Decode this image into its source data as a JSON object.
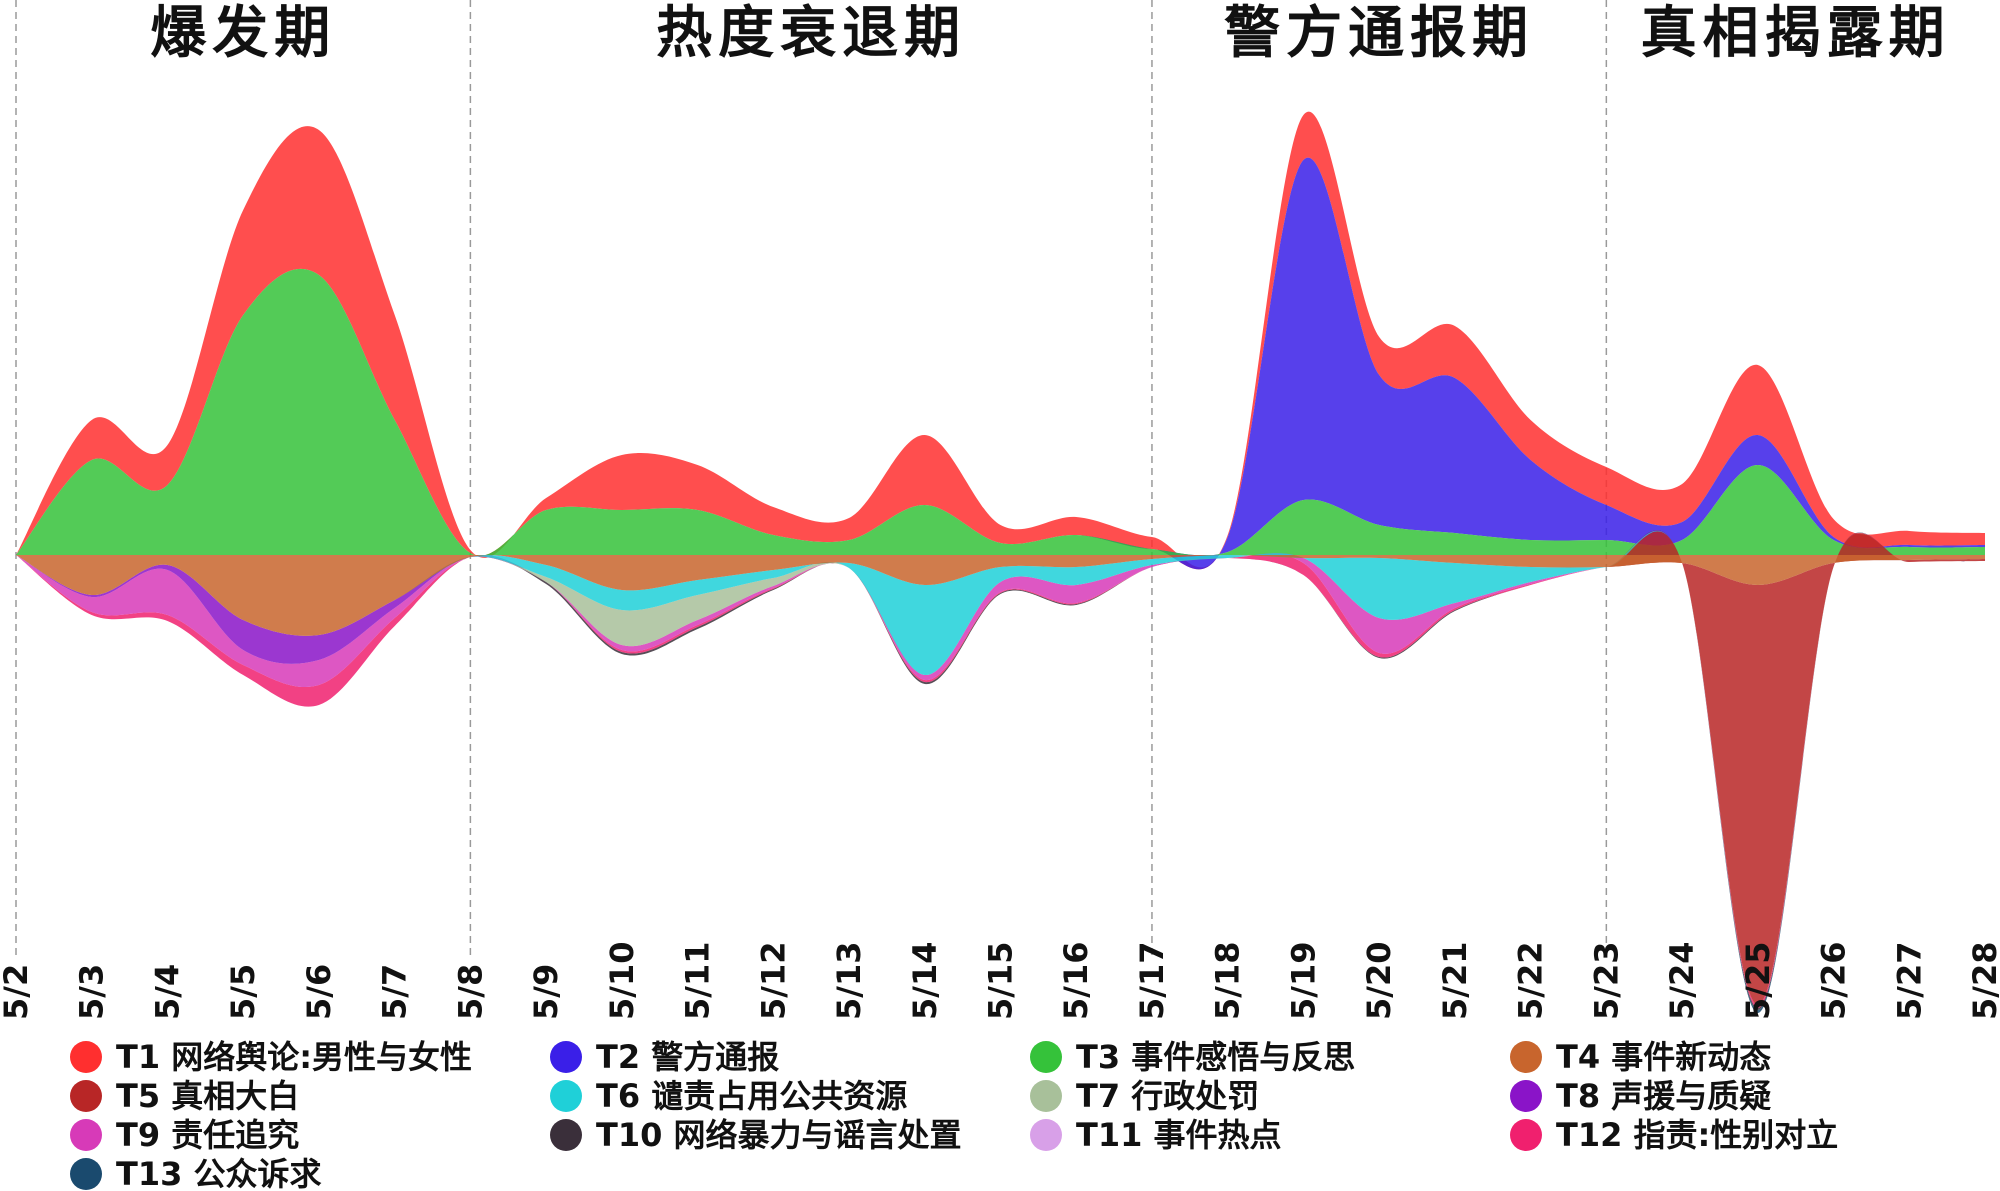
{
  "chart_data": {
    "type": "area",
    "subtype": "streamgraph",
    "x": [
      "5/2",
      "5/3",
      "5/4",
      "5/5",
      "5/6",
      "5/7",
      "5/8",
      "5/9",
      "5/10",
      "5/11",
      "5/12",
      "5/13",
      "5/14",
      "5/15",
      "5/16",
      "5/17",
      "5/18",
      "5/19",
      "5/20",
      "5/21",
      "5/22",
      "5/23",
      "5/24",
      "5/25",
      "5/26",
      "5/27",
      "5/28"
    ],
    "phases": [
      {
        "label": "爆发期",
        "from": "5/2",
        "to": "5/8"
      },
      {
        "label": "热度衰退期",
        "from": "5/8",
        "to": "5/17"
      },
      {
        "label": "警方通报期",
        "from": "5/17",
        "to": "5/23"
      },
      {
        "label": "真相揭露期",
        "from": "5/23",
        "to": "5/28"
      }
    ],
    "series": [
      {
        "name": "T1 网络舆论:男性与女性",
        "color": "#ff2f2f",
        "values": [
          0,
          40,
          40,
          105,
          145,
          105,
          3,
          12,
          55,
          45,
          28,
          22,
          70,
          18,
          18,
          12,
          2,
          45,
          38,
          52,
          40,
          38,
          38,
          70,
          18,
          14,
          12
        ]
      },
      {
        "name": "T2 警方通报",
        "color": "#3a1fe8",
        "values": [
          0,
          0,
          0,
          0,
          0,
          0,
          0,
          0,
          0,
          0,
          0,
          0,
          0,
          0,
          0,
          0,
          15,
          340,
          150,
          155,
          80,
          35,
          18,
          30,
          3,
          2,
          2
        ]
      },
      {
        "name": "T3 事件感悟与反思",
        "color": "#35c23a",
        "values": [
          0,
          95,
          70,
          240,
          280,
          135,
          2,
          45,
          45,
          45,
          20,
          15,
          50,
          12,
          20,
          6,
          3,
          55,
          30,
          22,
          15,
          15,
          15,
          90,
          15,
          8,
          8
        ]
      },
      {
        "name": "T4 事件新动态",
        "color": "#c8652d",
        "values": [
          0,
          40,
          10,
          65,
          80,
          45,
          2,
          10,
          35,
          25,
          15,
          8,
          30,
          12,
          12,
          4,
          0,
          3,
          3,
          8,
          12,
          12,
          8,
          30,
          8,
          5,
          4
        ]
      },
      {
        "name": "T5 真相大白",
        "color": "#b82626",
        "values": [
          0,
          0,
          0,
          0,
          0,
          0,
          0,
          0,
          0,
          0,
          0,
          0,
          0,
          0,
          0,
          0,
          0,
          0,
          0,
          0,
          0,
          0,
          0,
          420,
          4,
          2,
          2
        ]
      },
      {
        "name": "T6 谴责占用公共资源",
        "color": "#1fd0d8",
        "values": [
          0,
          0,
          0,
          0,
          0,
          0,
          0,
          12,
          20,
          15,
          8,
          5,
          90,
          15,
          18,
          6,
          3,
          0,
          60,
          40,
          15,
          0,
          0,
          0,
          0,
          0,
          0
        ]
      },
      {
        "name": "T7 行政处罚",
        "color": "#a8c09a",
        "values": [
          0,
          0,
          0,
          0,
          0,
          0,
          0,
          5,
          35,
          25,
          8,
          0,
          0,
          0,
          0,
          0,
          0,
          0,
          0,
          0,
          0,
          0,
          0,
          0,
          0,
          0,
          0
        ]
      },
      {
        "name": "T8 声援与质疑",
        "color": "#8a14c8",
        "values": [
          0,
          2,
          5,
          30,
          25,
          8,
          0,
          0,
          0,
          0,
          0,
          0,
          0,
          0,
          0,
          0,
          0,
          0,
          0,
          0,
          0,
          0,
          0,
          0,
          0,
          0,
          0
        ]
      },
      {
        "name": "T9 责任追究",
        "color": "#d73ab8",
        "values": [
          0,
          15,
          45,
          15,
          25,
          10,
          0,
          0,
          5,
          5,
          2,
          0,
          5,
          10,
          18,
          2,
          0,
          5,
          35,
          5,
          2,
          0,
          0,
          0,
          0,
          0,
          0
        ]
      },
      {
        "name": "T10 网络暴力与谣言处置",
        "color": "#3a2f3a",
        "values": [
          0,
          0,
          0,
          0,
          0,
          0,
          0,
          2,
          2,
          2,
          1,
          0,
          2,
          1,
          1,
          0,
          0,
          0,
          1,
          1,
          0,
          0,
          0,
          2,
          0,
          0,
          0
        ]
      },
      {
        "name": "T11 事件热点",
        "color": "#d8a0e8",
        "values": [
          0,
          0,
          0,
          0,
          0,
          0,
          0,
          0,
          0,
          0,
          0,
          0,
          0,
          0,
          0,
          0,
          0,
          0,
          0,
          0,
          0,
          0,
          0,
          0,
          0,
          0,
          0
        ]
      },
      {
        "name": "T12 指责:性别对立",
        "color": "#f0206e",
        "values": [
          0,
          3,
          6,
          10,
          20,
          8,
          0,
          0,
          2,
          2,
          1,
          0,
          2,
          1,
          1,
          0,
          0,
          12,
          4,
          2,
          1,
          0,
          0,
          3,
          0,
          0,
          0
        ]
      },
      {
        "name": "T13 公众诉求",
        "color": "#1a4a6e",
        "values": [
          0,
          0,
          0,
          0,
          0,
          0,
          0,
          0,
          0,
          0,
          0,
          0,
          0,
          0,
          0,
          0,
          0,
          0,
          0,
          0,
          0,
          0,
          0,
          3,
          0,
          0,
          0
        ]
      }
    ],
    "upper_stack": [
      "T3 事件感悟与反思",
      "T2 警方通报",
      "T1 网络舆论:男性与女性"
    ],
    "lower_stack": [
      "T4 事件新动态",
      "T5 真相大白",
      "T6 谴责占用公共资源",
      "T7 行政处罚",
      "T8 声援与质疑",
      "T9 责任追究",
      "T12 指责:性别对立",
      "T10 网络暴力与谣言处置",
      "T13 公众诉求",
      "T11 事件热点"
    ],
    "title": "",
    "xlabel": "",
    "ylabel": "",
    "grid": false,
    "legend_placement": "bottom"
  }
}
